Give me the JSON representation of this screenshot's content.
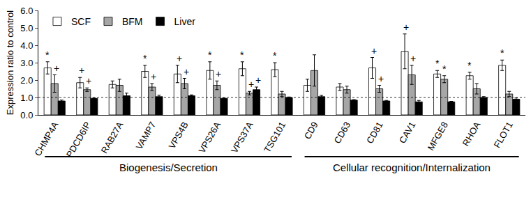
{
  "chart_data": {
    "type": "bar",
    "y_label": "Expression ratio to control",
    "categories": [
      "CHMP4A",
      "PDCD6IP",
      "RAB27A",
      "VAMP7",
      "VPS4B",
      "VPS26A",
      "VPS37A",
      "TSG101",
      "CD9",
      "CD63",
      "CD81",
      "CAV1",
      "MFGE8",
      "RHOA",
      "FLOT1"
    ],
    "series": [
      {
        "name": "SCF",
        "color": "#ffffff",
        "values": [
          2.7,
          1.85,
          1.75,
          2.5,
          2.35,
          2.55,
          2.65,
          2.6,
          1.7,
          1.6,
          2.7,
          3.65,
          2.35,
          2.25,
          2.85
        ],
        "errors": [
          0.35,
          0.3,
          0.2,
          0.35,
          0.5,
          0.5,
          0.4,
          0.4,
          0.35,
          0.2,
          0.6,
          1.0,
          0.2,
          0.2,
          0.3
        ],
        "marks": [
          "*",
          "+",
          null,
          "*",
          "+",
          "*",
          "*",
          "*",
          null,
          null,
          "+",
          "+",
          "*",
          "*",
          "*"
        ]
      },
      {
        "name": "BFM",
        "color": "#a6a6a6",
        "values": [
          1.8,
          1.45,
          1.7,
          1.6,
          1.8,
          1.7,
          1.25,
          1.2,
          2.55,
          1.45,
          1.5,
          2.3,
          2.05,
          1.5,
          1.2
        ],
        "errors": [
          0.5,
          0.1,
          0.35,
          0.2,
          0.3,
          0.25,
          0.1,
          0.15,
          0.9,
          0.2,
          0.2,
          0.55,
          0.2,
          0.3,
          0.15
        ],
        "marks": [
          "+",
          "+",
          null,
          "+",
          "+",
          "+",
          "+",
          null,
          null,
          null,
          "+",
          "+",
          "*",
          null,
          null
        ]
      },
      {
        "name": "Liver",
        "color": "#000000",
        "values": [
          0.8,
          0.95,
          1.1,
          1.05,
          1.1,
          0.95,
          1.45,
          1.0,
          1.05,
          0.85,
          0.8,
          0.75,
          0.75,
          1.0,
          0.9
        ],
        "errors": [
          0.05,
          0.02,
          0.15,
          0.08,
          0.05,
          0.02,
          0.15,
          0.03,
          0.07,
          0.03,
          0.03,
          0.08,
          0.03,
          0.05,
          0.07
        ],
        "marks": [
          null,
          null,
          null,
          null,
          null,
          null,
          "+",
          null,
          null,
          null,
          null,
          null,
          null,
          null,
          null
        ]
      }
    ],
    "reference_line": 1.0,
    "groups": [
      {
        "label": "Biogenesis/Secretion",
        "from": "CHMP4A",
        "to": "TSG101"
      },
      {
        "label": "Cellular recognition/Internalization",
        "from": "CD9",
        "to": "FLOT1"
      }
    ],
    "ylim": [
      0,
      6
    ],
    "yticks": [
      {
        "value": 0,
        "label": "0.0"
      },
      {
        "value": 1,
        "label": "1.0"
      },
      {
        "value": 2,
        "label": "2.0"
      },
      {
        "value": 3,
        "label": "3.0"
      },
      {
        "value": 4,
        "label": "4.0"
      },
      {
        "value": 5,
        "label": "5.0"
      },
      {
        "value": 6,
        "label": "6.0"
      }
    ],
    "legend": "top-left",
    "grid": false
  }
}
